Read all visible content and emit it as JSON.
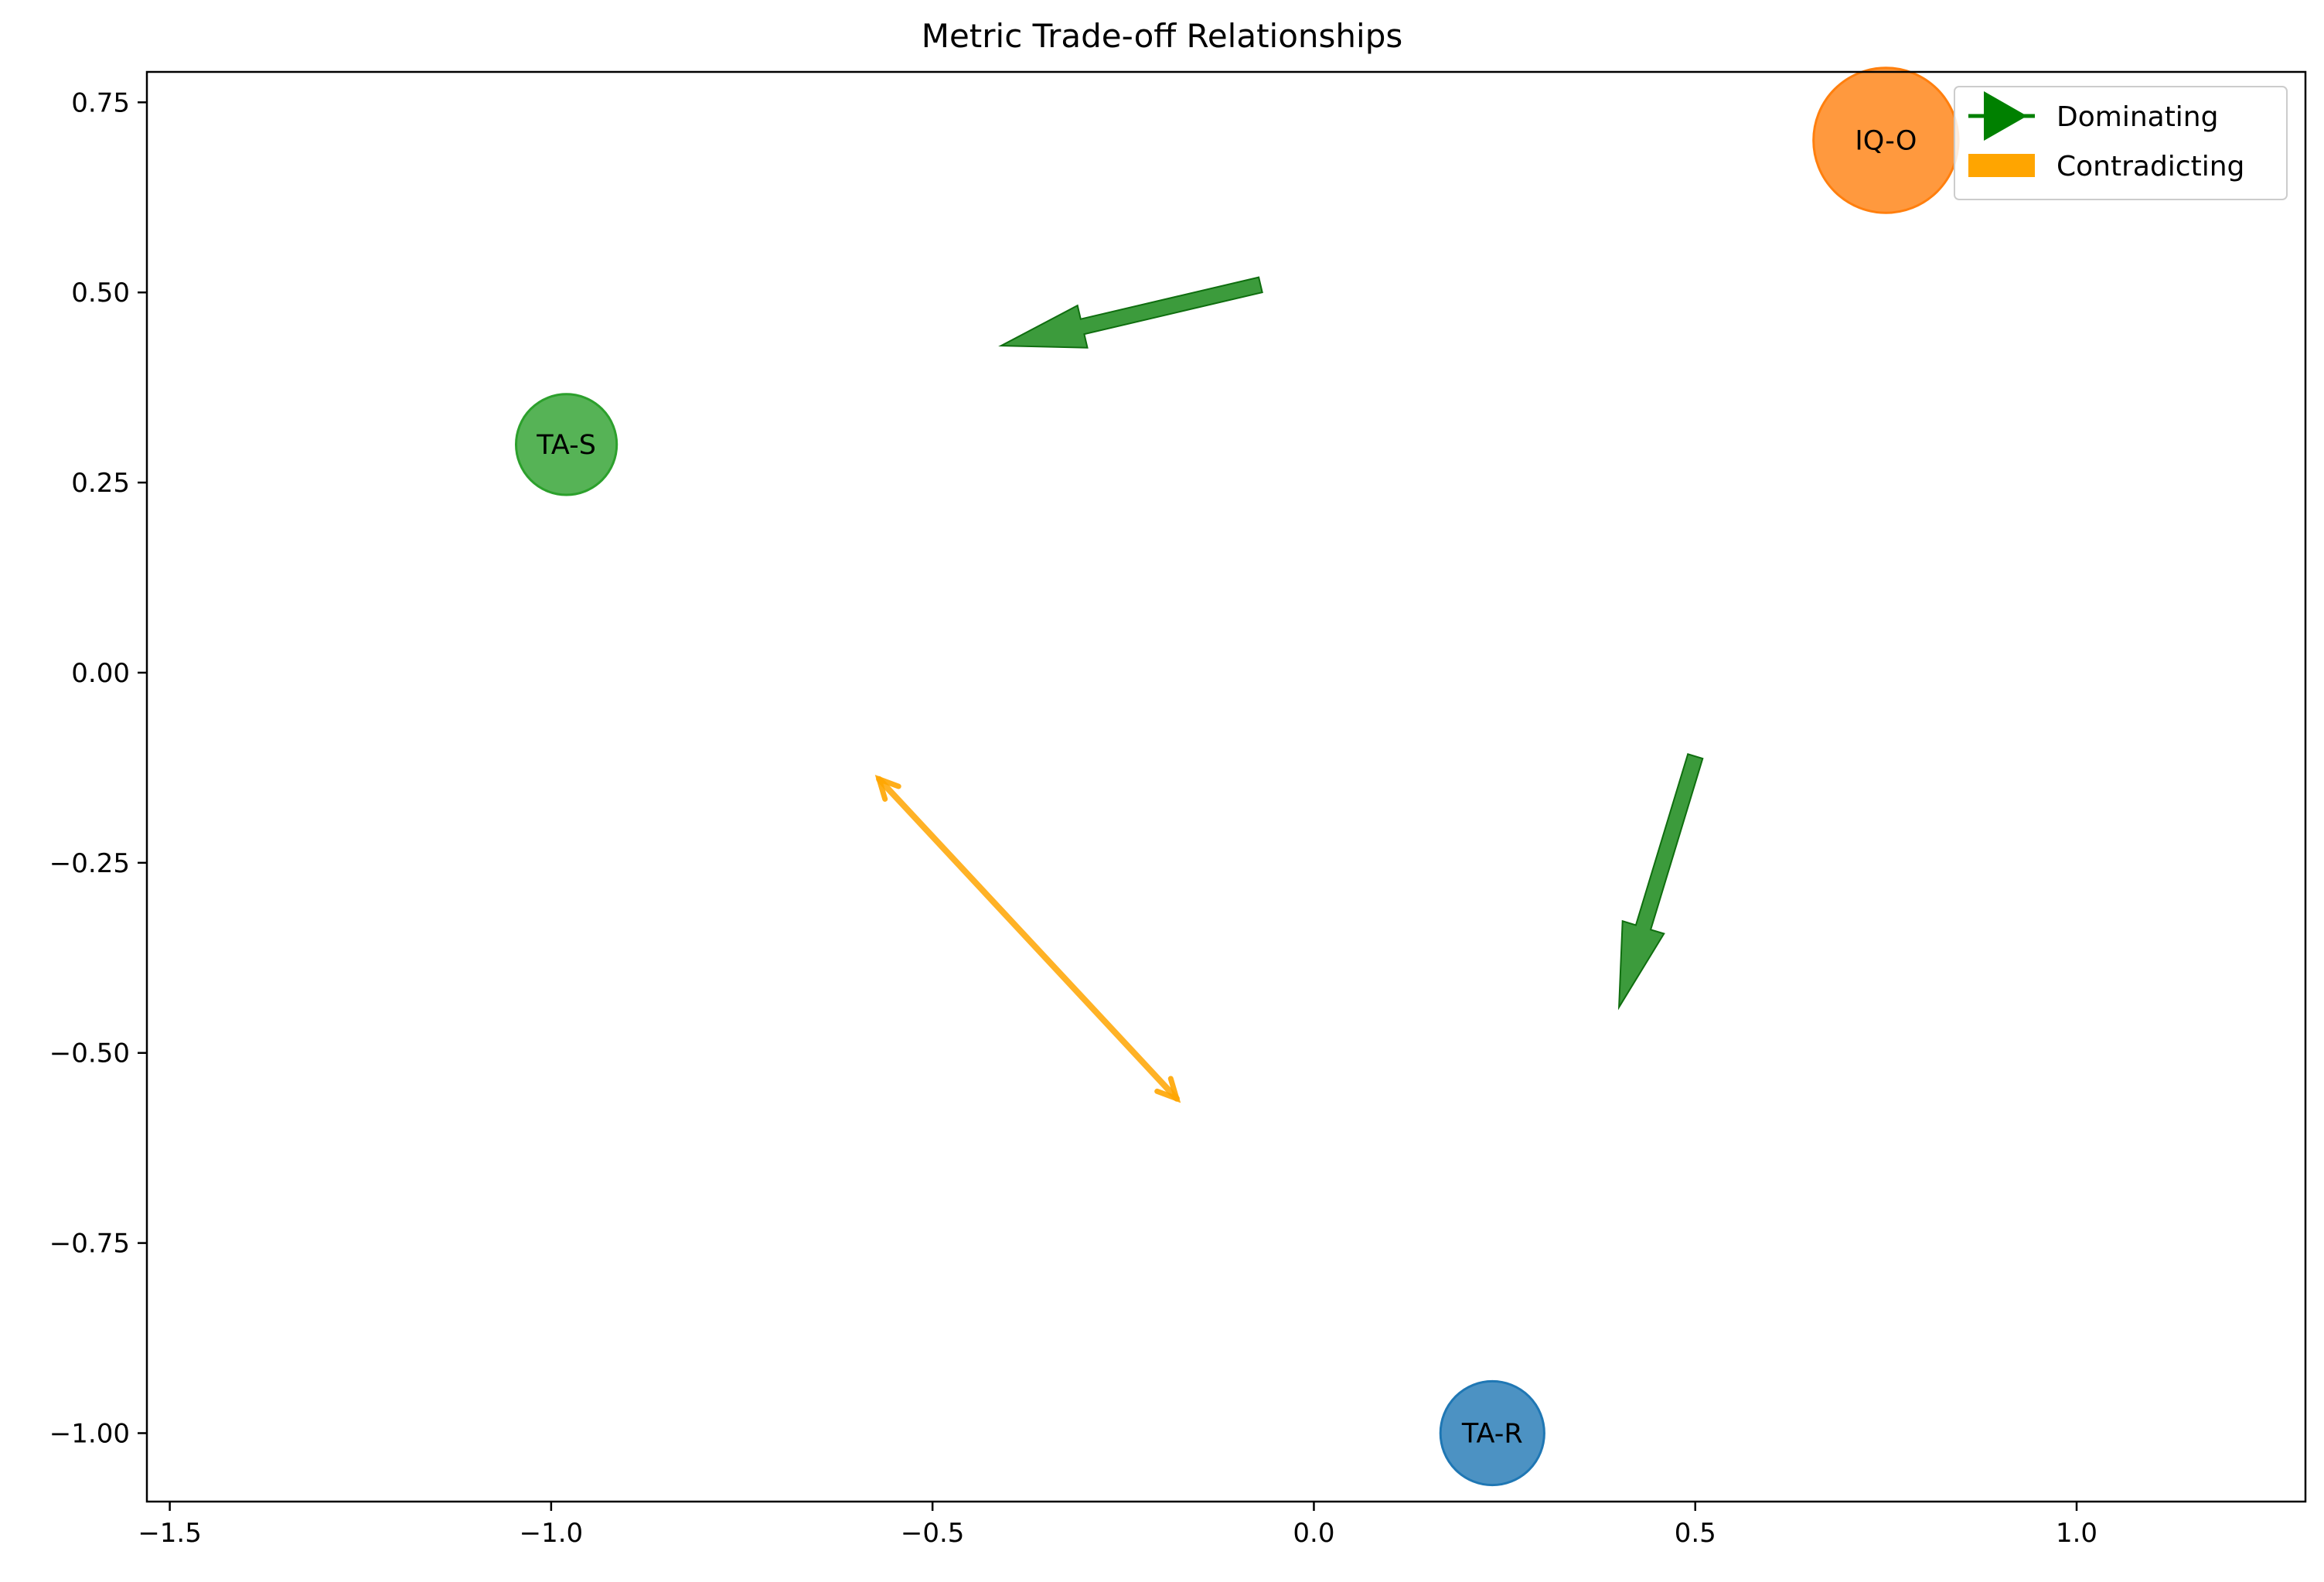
{
  "chart_data": {
    "type": "scatter",
    "title": "Metric Trade-off Relationships",
    "xlabel": "",
    "ylabel": "",
    "xlim": [
      -1.53,
      1.3
    ],
    "ylim": [
      -1.09,
      0.79
    ],
    "x_ticks": [
      -1.5,
      -1.0,
      -0.5,
      0.0,
      0.5,
      1.0
    ],
    "x_tick_labels": [
      "−1.5",
      "−1.0",
      "−0.5",
      "0.0",
      "0.5",
      "1.0"
    ],
    "y_ticks": [
      0.75,
      0.5,
      0.25,
      0.0,
      -0.25,
      -0.5,
      -0.75,
      -1.0
    ],
    "y_tick_labels": [
      "0.75",
      "0.50",
      "0.25",
      "0.00",
      "−0.25",
      "−0.50",
      "−0.75",
      "−1.00"
    ],
    "grid": false,
    "nodes": [
      {
        "label": "IQ-O",
        "x": 0.75,
        "y": 0.7,
        "size": 0.095,
        "color": "#ff7f0e"
      },
      {
        "label": "TA-S",
        "x": -0.98,
        "y": 0.3,
        "size": 0.066,
        "color": "#2ca02c"
      },
      {
        "label": "TA-R",
        "x": 0.234,
        "y": -1.0,
        "size": 0.068,
        "color": "#1f77b4"
      }
    ],
    "edges": [
      {
        "type": "Dominating",
        "x_start": -0.07,
        "y_start": 0.51,
        "x_end": -0.41,
        "y_end": 0.43,
        "color": "#1a8a1a"
      },
      {
        "type": "Dominating",
        "x_start": 0.5,
        "y_start": -0.11,
        "x_end": 0.4,
        "y_end": -0.44,
        "color": "#1a8a1a"
      },
      {
        "type": "Contradicting",
        "x_start": -0.57,
        "y_start": -0.14,
        "x_end": -0.18,
        "y_end": -0.56,
        "color": "#ffa500"
      }
    ],
    "legend": {
      "location": "upper right",
      "entries": [
        {
          "label": "Dominating",
          "color": "#008000",
          "marker": "triangle-arrow"
        },
        {
          "label": "Contradicting",
          "color": "#ffa500",
          "marker": "patch"
        }
      ]
    }
  }
}
